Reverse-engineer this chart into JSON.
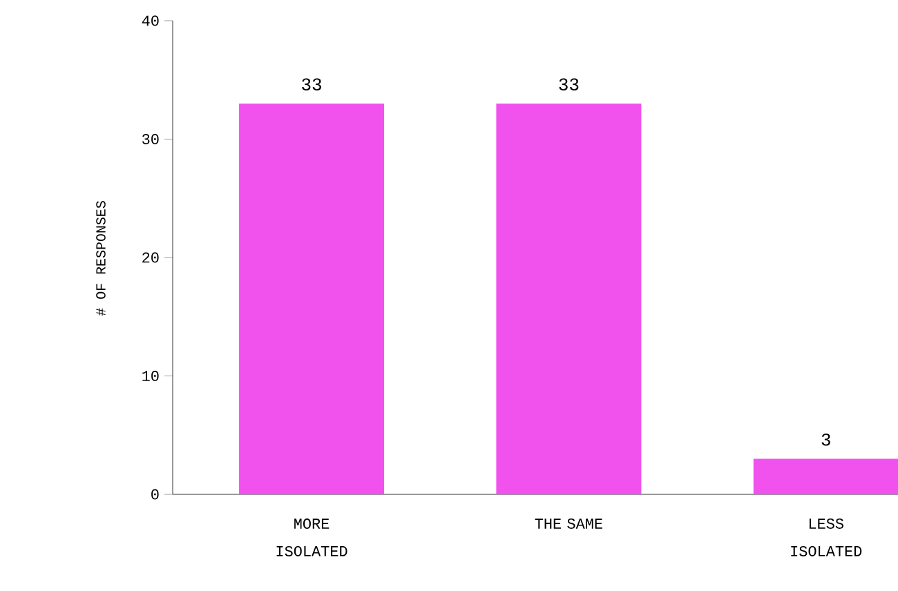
{
  "chart_data": {
    "type": "bar",
    "ylabel": "# OF RESPONSES",
    "categories": [
      "MORE ISOLATED",
      "THE SAME",
      "LESS ISOLATED"
    ],
    "values": [
      33,
      33,
      3
    ],
    "color": "#f152ee",
    "ylim": [
      0,
      40
    ],
    "yticks": [
      0,
      10,
      20,
      30,
      40
    ],
    "data_labels": true
  }
}
